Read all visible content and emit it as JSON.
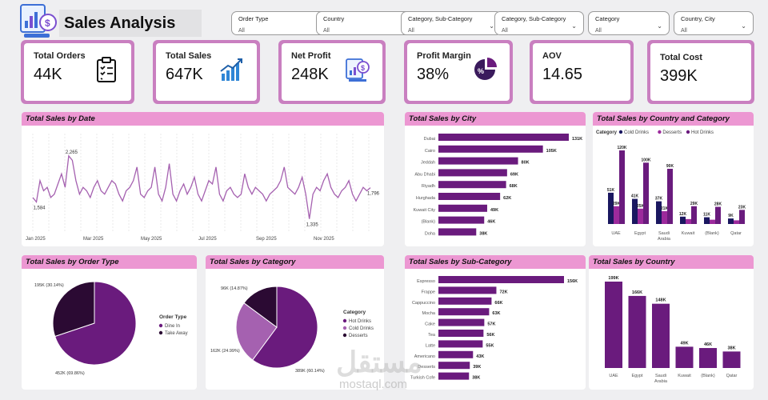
{
  "header": {
    "title": "Sales Analysis"
  },
  "filters": [
    {
      "label": "Order Type",
      "value": "All"
    },
    {
      "label": "Country",
      "value": "All"
    },
    {
      "label": "Category, Sub-Category",
      "value": "All"
    },
    {
      "label": "Category, Sub-Category",
      "value": "All"
    },
    {
      "label": "Category",
      "value": "All"
    },
    {
      "label": "Country, City",
      "value": "All"
    }
  ],
  "kpis": [
    {
      "label": "Total Orders",
      "value": "44K",
      "icon": "clipboard-icon"
    },
    {
      "label": "Total Sales",
      "value": "647K",
      "icon": "chart-growth-icon"
    },
    {
      "label": "Net Profit",
      "value": "248K",
      "icon": "analytics-icon"
    },
    {
      "label": "Profit Margin",
      "value": "38%",
      "icon": "pie-percent-icon"
    },
    {
      "label": "AOV",
      "value": "14.65"
    },
    {
      "label": "Total Cost",
      "value": "399K"
    }
  ],
  "colors": {
    "accent": "#ec97d2",
    "kpi_frame": "#c97fc0",
    "purple": "#6a1b7d",
    "dark": "#2b0a33",
    "light": "#a561b0",
    "navy": "#1a1760",
    "magenta": "#9c2a9c"
  },
  "panel_titles": {
    "date": "Total Sales by Date",
    "city": "Total Sales by City",
    "country_category": "Total Sales by Country and Category",
    "order_type": "Total Sales by Order Type",
    "category": "Total Sales by Category",
    "subcategory": "Total Sales by Sub-Category",
    "country": "Total Sales by Country"
  },
  "chart_data": [
    {
      "id": "date",
      "type": "line",
      "title": "Total Sales by Date",
      "x_ticks": [
        "Jan 2025",
        "Mar 2025",
        "May 2025",
        "Jul 2025",
        "Sep 2025",
        "Nov 2025"
      ],
      "ylim": [
        1200,
        2500
      ],
      "values": [
        1650,
        1584,
        1900,
        1750,
        1800,
        1650,
        1700,
        1850,
        2000,
        1800,
        2265,
        2200,
        1900,
        1700,
        1800,
        1750,
        1650,
        1800,
        1900,
        1750,
        1700,
        1800,
        1900,
        1850,
        1700,
        1600,
        1750,
        1800,
        1900,
        2100,
        1700,
        1650,
        1750,
        1800,
        2100,
        1700,
        1600,
        1800,
        2150,
        1700,
        1600,
        1750,
        1850,
        1700,
        1800,
        1950,
        1700,
        1600,
        1750,
        1900,
        1850,
        2100,
        1700,
        1600,
        1750,
        1800,
        1700,
        1650,
        1700,
        2000,
        1800,
        1700,
        1800,
        1750,
        1700,
        1600,
        1700,
        1750,
        1800,
        1900,
        2100,
        1800,
        1750,
        1700,
        1800,
        1950,
        1700,
        1335,
        1700,
        1800,
        1750,
        1900,
        2000,
        1800,
        1700,
        1650,
        1750,
        1800,
        1900,
        1700,
        1600,
        1700,
        1800,
        1750,
        1796
      ],
      "annotations": [
        {
          "index": 10,
          "label": "2,265"
        },
        {
          "index": 1,
          "label": "1,584"
        },
        {
          "index": 77,
          "label": "1,335"
        },
        {
          "index": 94,
          "label": "1,796"
        }
      ]
    },
    {
      "id": "city",
      "type": "bar",
      "orientation": "horizontal",
      "title": "Total Sales by City",
      "categories": [
        "Dubai",
        "Cairo",
        "Jeddah",
        "Abu Dhabi",
        "Riyadh",
        "Hurghada",
        "Kuwait City",
        "(Blank)",
        "Doha"
      ],
      "values": [
        131,
        105,
        80,
        69,
        68,
        62,
        49,
        46,
        38
      ],
      "labels": [
        "131K",
        "105K",
        "80K",
        "69K",
        "68K",
        "62K",
        "49K",
        "46K",
        "38K"
      ]
    },
    {
      "id": "country_category",
      "type": "bar",
      "title": "Total Sales by Country and Category",
      "legend_title": "Category",
      "categories": [
        "UAE",
        "Egypt",
        "Saudi Arabia",
        "Kuwait",
        "(Blank)",
        "Qatar"
      ],
      "series": [
        {
          "name": "Cold  Drinks",
          "color": "#1a1760",
          "values": [
            51,
            41,
            37,
            12,
            11,
            9
          ],
          "labels": [
            "51K",
            "41K",
            "37K",
            "12K",
            "11K",
            "9K"
          ]
        },
        {
          "name": "Desserts",
          "color": "#9c2a9c",
          "values": [
            29,
            25,
            21,
            8,
            7,
            6
          ],
          "labels": [
            "29K",
            "25K",
            "21K",
            "",
            "",
            ""
          ]
        },
        {
          "name": "Hot  Drinks",
          "color": "#6a1b7d",
          "values": [
            120,
            100,
            90,
            29,
            28,
            23
          ],
          "labels": [
            "120K",
            "100K",
            "90K",
            "29K",
            "28K",
            "23K"
          ]
        }
      ]
    },
    {
      "id": "order_type",
      "type": "pie",
      "title": "Total Sales by Order Type",
      "legend_title": "Order Type",
      "slices": [
        {
          "name": "Dine In",
          "value": 69.86,
          "label": "452K (69.86%)",
          "color": "#6a1b7d"
        },
        {
          "name": "Take Away",
          "value": 30.14,
          "label": "195K (30.14%)",
          "color": "#2b0a33"
        }
      ]
    },
    {
      "id": "category",
      "type": "pie",
      "title": "Total Sales by Category",
      "legend_title": "Category",
      "slices": [
        {
          "name": "Hot  Drinks",
          "value": 60.14,
          "label": "389K (60.14%)",
          "color": "#6a1b7d"
        },
        {
          "name": "Cold  Drinks",
          "value": 24.99,
          "label": "162K (24.99%)",
          "color": "#a561b0"
        },
        {
          "name": "Desserts",
          "value": 14.87,
          "label": "96K (14.87%)",
          "color": "#2b0a33"
        }
      ]
    },
    {
      "id": "subcategory",
      "type": "bar",
      "orientation": "horizontal",
      "title": "Total Sales by Sub-Category",
      "categories": [
        "Espresso",
        "Frappe",
        "Cappuccino",
        "Mocha",
        "Cake",
        "Tea",
        "Latte",
        "Americano",
        "Desserts",
        "Turkish Cofe"
      ],
      "values": [
        156,
        72,
        66,
        63,
        57,
        56,
        55,
        43,
        39,
        38
      ],
      "labels": [
        "156K",
        "72K",
        "66K",
        "63K",
        "57K",
        "56K",
        "55K",
        "43K",
        "39K",
        "38K"
      ]
    },
    {
      "id": "country",
      "type": "bar",
      "title": "Total Sales by Country",
      "categories": [
        "UAE",
        "Egypt",
        "Saudi Arabia",
        "Kuwait",
        "(Blank)",
        "Qatar"
      ],
      "values": [
        199,
        166,
        148,
        49,
        46,
        38
      ],
      "labels": [
        "199K",
        "166K",
        "148K",
        "49K",
        "46K",
        "38K"
      ]
    }
  ],
  "watermark": {
    "arabic": "مستقل",
    "latin": "mostaql.com"
  }
}
